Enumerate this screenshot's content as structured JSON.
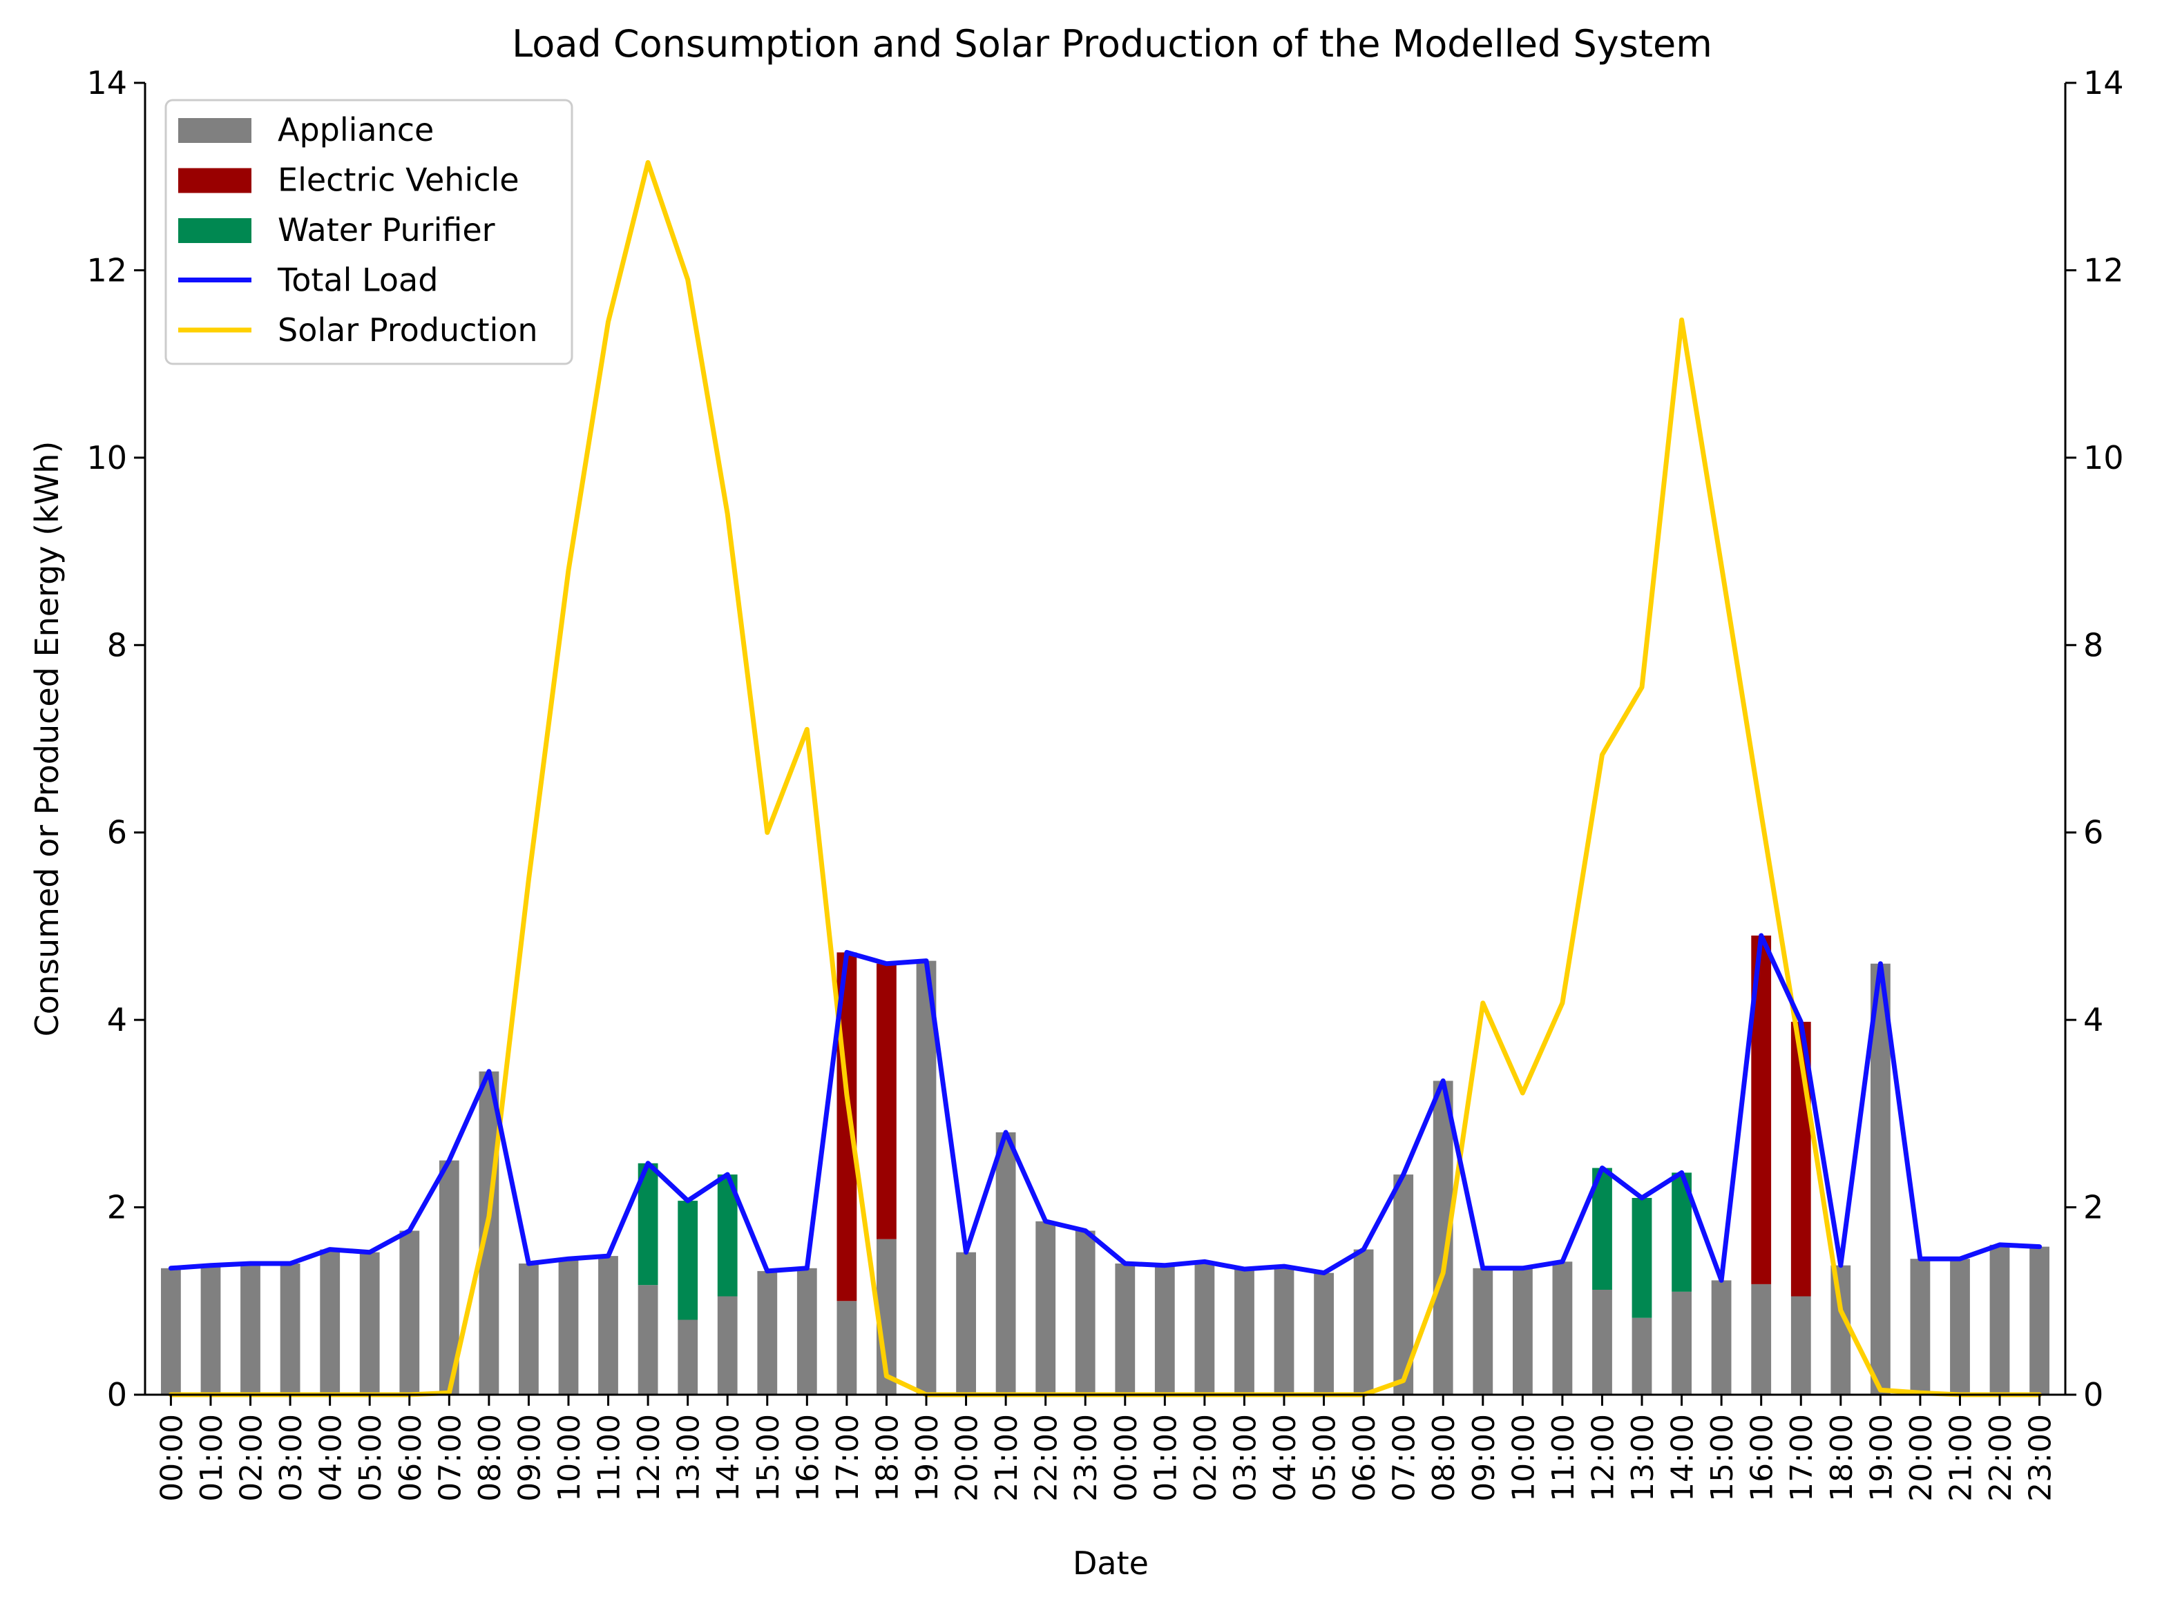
{
  "chart_data": {
    "type": "bar",
    "title": "Load Consumption and Solar Production of the Modelled System",
    "xlabel": "Date",
    "ylabel": "Consumed or Produced Energy (kWh)",
    "ylim": [
      0,
      14
    ],
    "yticks": [
      0,
      2,
      4,
      6,
      8,
      10,
      12,
      14
    ],
    "y2lim": [
      0,
      14
    ],
    "y2ticks": [
      0,
      2,
      4,
      6,
      8,
      10,
      12,
      14
    ],
    "grid": false,
    "legend_position": "top-left",
    "categories": [
      "00:00",
      "01:00",
      "02:00",
      "03:00",
      "04:00",
      "05:00",
      "06:00",
      "07:00",
      "08:00",
      "09:00",
      "10:00",
      "11:00",
      "12:00",
      "13:00",
      "14:00",
      "15:00",
      "16:00",
      "17:00",
      "18:00",
      "19:00",
      "20:00",
      "21:00",
      "22:00",
      "23:00",
      "00:00",
      "01:00",
      "02:00",
      "03:00",
      "04:00",
      "05:00",
      "06:00",
      "07:00",
      "08:00",
      "09:00",
      "10:00",
      "11:00",
      "12:00",
      "13:00",
      "14:00",
      "15:00",
      "16:00",
      "17:00",
      "18:00",
      "19:00",
      "20:00",
      "21:00",
      "22:00",
      "23:00"
    ],
    "stacked_series": [
      {
        "name": "Appliance",
        "kind": "bar",
        "color": "#808080",
        "values": [
          1.35,
          1.38,
          1.4,
          1.4,
          1.55,
          1.52,
          1.75,
          2.5,
          3.45,
          1.4,
          1.45,
          1.48,
          1.17,
          0.8,
          1.05,
          1.32,
          1.35,
          1.0,
          1.66,
          4.63,
          1.52,
          2.8,
          1.85,
          1.75,
          1.4,
          1.38,
          1.42,
          1.34,
          1.37,
          1.3,
          1.55,
          2.35,
          3.35,
          1.35,
          1.35,
          1.42,
          1.12,
          0.82,
          1.1,
          1.22,
          1.18,
          1.05,
          1.38,
          4.6,
          1.45,
          1.45,
          1.6,
          1.58
        ]
      },
      {
        "name": "Electric Vehicle",
        "kind": "bar",
        "color": "#990000",
        "values": [
          0,
          0,
          0,
          0,
          0,
          0,
          0,
          0,
          0,
          0,
          0,
          0,
          0,
          0,
          0,
          0,
          0,
          3.72,
          2.94,
          0,
          0,
          0,
          0,
          0,
          0,
          0,
          0,
          0,
          0,
          0,
          0,
          0,
          0,
          0,
          0,
          0,
          0,
          0,
          0,
          0,
          3.72,
          2.93,
          0,
          0,
          0,
          0,
          0,
          0
        ]
      },
      {
        "name": "Water Purifier",
        "kind": "bar",
        "color": "#008851",
        "values": [
          0,
          0,
          0,
          0,
          0,
          0,
          0,
          0,
          0,
          0,
          0,
          0,
          1.3,
          1.27,
          1.3,
          0,
          0,
          0,
          0,
          0,
          0,
          0,
          0,
          0,
          0,
          0,
          0,
          0,
          0,
          0,
          0,
          0,
          0,
          0,
          0,
          0,
          1.3,
          1.28,
          1.27,
          0,
          0,
          0,
          0,
          0,
          0,
          0,
          0,
          0
        ]
      }
    ],
    "line_series": [
      {
        "name": "Total Load",
        "kind": "line",
        "color": "#0f0fff",
        "values": [
          1.35,
          1.38,
          1.4,
          1.4,
          1.55,
          1.52,
          1.75,
          2.5,
          3.45,
          1.4,
          1.45,
          1.48,
          2.47,
          2.07,
          2.35,
          1.32,
          1.35,
          4.72,
          4.6,
          4.63,
          1.52,
          2.8,
          1.85,
          1.75,
          1.4,
          1.38,
          1.42,
          1.34,
          1.37,
          1.3,
          1.55,
          2.35,
          3.35,
          1.35,
          1.35,
          1.42,
          2.42,
          2.1,
          2.37,
          1.22,
          4.9,
          3.98,
          1.38,
          4.6,
          1.45,
          1.45,
          1.6,
          1.58
        ]
      },
      {
        "name": "Solar Production",
        "kind": "line",
        "color": "#ffd000",
        "values": [
          0,
          0,
          0,
          0,
          0,
          0,
          0,
          0.02,
          1.9,
          5.5,
          8.8,
          11.45,
          13.15,
          11.9,
          9.4,
          6.0,
          7.1,
          3.2,
          0.2,
          0.0,
          0,
          0,
          0,
          0,
          0,
          0,
          0,
          0,
          0,
          0,
          0,
          0.15,
          1.3,
          4.18,
          3.22,
          4.18,
          6.83,
          7.55,
          11.47,
          8.85,
          6.2,
          3.6,
          0.9,
          0.05,
          0.02,
          0,
          0,
          0
        ]
      }
    ]
  }
}
